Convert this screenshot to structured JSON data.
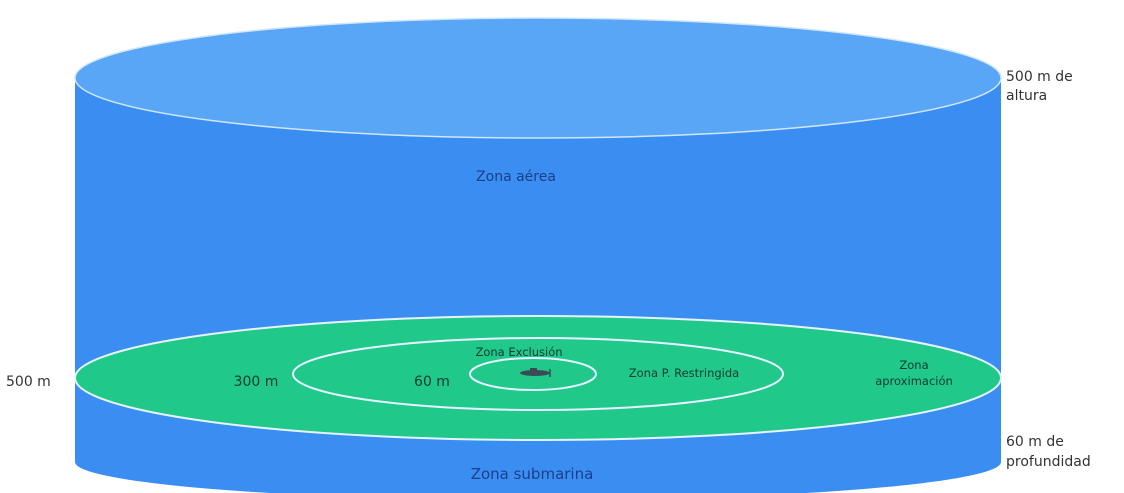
{
  "labels": {
    "air_zone": "Zona aérea",
    "submarine_zone": "Zona submarina",
    "height_line1": "500 m de",
    "height_line2": "altura",
    "depth_line1": "60 m de",
    "depth_line2": "profundidad",
    "radius_outer": "500 m",
    "radius_middle": "300 m",
    "radius_inner": "60 m",
    "exclusion_zone": "Zona Exclusión",
    "restricted_zone": "Zona P. Restringida",
    "approach_line1": "Zona",
    "approach_line2": "aproximación"
  },
  "icons": {
    "center_object": "submarine-icon"
  },
  "colors": {
    "cylinder_body": "#3a8ef2",
    "cylinder_top": "#5aa6f6",
    "sea_level_disc": "#20c88a",
    "ring_line": "#e6f4ff",
    "zone_text": "#1c3f8a",
    "inner_text": "#0f3b33",
    "side_text": "#333333"
  }
}
